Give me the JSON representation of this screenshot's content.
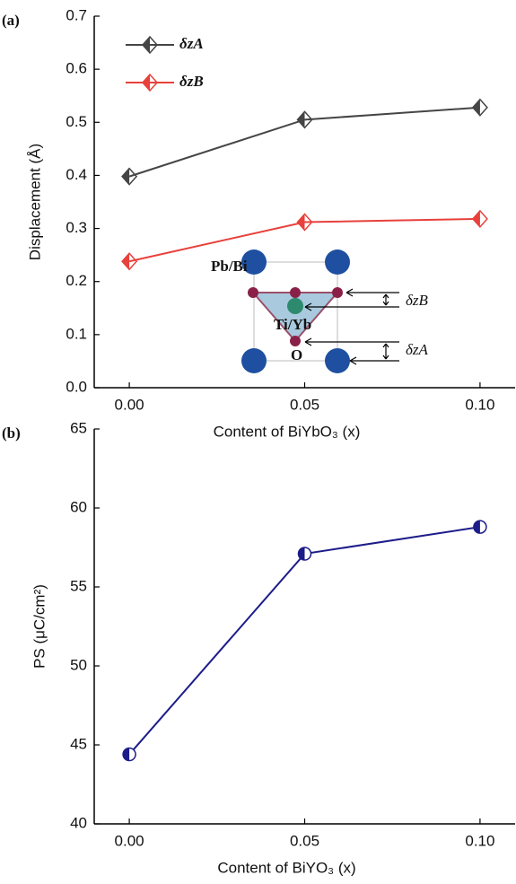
{
  "chart_data": [
    {
      "type": "line",
      "panel_label": "(a)",
      "xlabel": "Content of BiYbO₃ (x)",
      "ylabel": "Displacement (Å)",
      "x": [
        0,
        0.05,
        0.1
      ],
      "series": [
        {
          "name": "δzA",
          "color": "#454545",
          "values": [
            0.398,
            0.505,
            0.528
          ]
        },
        {
          "name": "δzB",
          "color": "#e8413c",
          "values": [
            0.238,
            0.312,
            0.318
          ]
        }
      ],
      "xlim": [
        -0.01,
        0.11
      ],
      "xticks": [
        {
          "value": 0,
          "label": "0.00"
        },
        {
          "value": 0.05,
          "label": "0.05"
        },
        {
          "value": 0.1,
          "label": "0.10"
        }
      ],
      "ylim": [
        0,
        0.7
      ],
      "yticks": [
        {
          "value": 0,
          "label": "0.0"
        },
        0.1,
        0.2,
        0.3,
        0.4,
        0.5,
        0.6,
        0.7
      ],
      "marker": "diamond",
      "annotations": [
        "Pb/Bi",
        "Ti/Yb",
        "O",
        "δzB",
        "δzA"
      ]
    },
    {
      "type": "line",
      "panel_label": "(b)",
      "xlabel": "Content of BiYO₃ (x)",
      "ylabel": "PS (μC/cm²)",
      "x": [
        0,
        0.05,
        0.1
      ],
      "series": [
        {
          "color": "#1c1c8a",
          "values": [
            44.4,
            57.1,
            58.8
          ]
        }
      ],
      "xlim": [
        -0.01,
        0.11
      ],
      "xticks": [
        {
          "value": 0,
          "label": "0.00"
        },
        {
          "value": 0.05,
          "label": "0.05"
        },
        {
          "value": 0.1,
          "label": "0.10"
        }
      ],
      "ylim": [
        40,
        65
      ],
      "yticks": [
        40,
        45,
        50,
        55,
        60,
        65
      ],
      "marker": "circle"
    }
  ]
}
